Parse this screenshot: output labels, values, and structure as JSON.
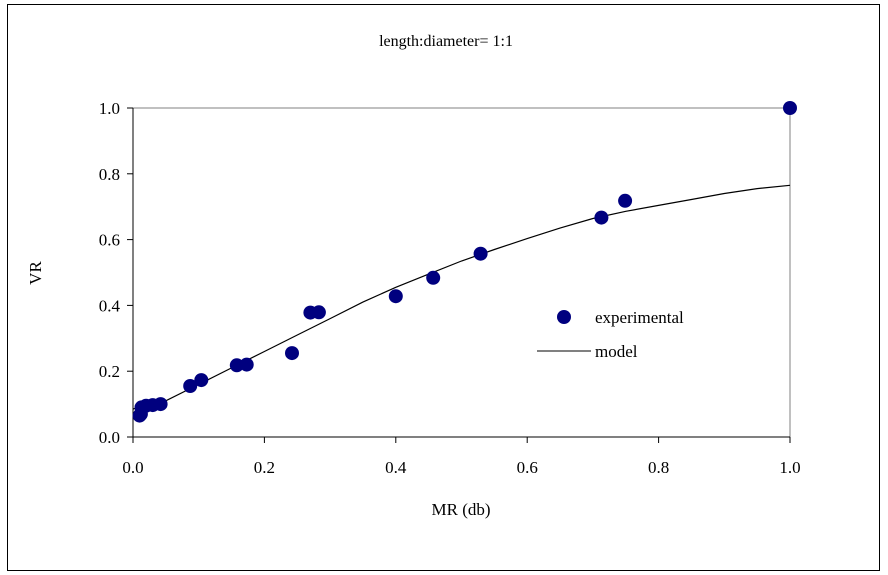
{
  "chart_data": {
    "type": "scatter",
    "title": "length:diameter= 1:1",
    "xlabel": "MR (db)",
    "ylabel": "VR",
    "xlim": [
      0.0,
      1.0
    ],
    "ylim": [
      0.0,
      1.0
    ],
    "x_ticks": [
      "0.0",
      "0.2",
      "0.4",
      "0.6",
      "0.8",
      "1.0"
    ],
    "y_ticks": [
      "0.0",
      "0.2",
      "0.4",
      "0.6",
      "0.8",
      "1.0"
    ],
    "grid": false,
    "legend_position": "right",
    "series": [
      {
        "name": "experimental",
        "kind": "scatter",
        "color": "#00007f",
        "x": [
          0.01,
          0.012,
          0.013,
          0.02,
          0.03,
          0.042,
          0.087,
          0.104,
          0.158,
          0.173,
          0.242,
          0.27,
          0.283,
          0.4,
          0.457,
          0.529,
          0.713,
          0.749,
          1.0
        ],
        "y": [
          0.065,
          0.07,
          0.09,
          0.095,
          0.097,
          0.1,
          0.155,
          0.173,
          0.218,
          0.22,
          0.255,
          0.378,
          0.379,
          0.428,
          0.484,
          0.557,
          0.667,
          0.718,
          1.0
        ]
      },
      {
        "name": "model",
        "kind": "line",
        "color": "#000000",
        "x": [
          0.0,
          0.05,
          0.1,
          0.15,
          0.2,
          0.25,
          0.3,
          0.35,
          0.4,
          0.45,
          0.5,
          0.55,
          0.6,
          0.65,
          0.7,
          0.75,
          0.8,
          0.85,
          0.9,
          0.95,
          1.0
        ],
        "y": [
          0.085,
          0.11,
          0.16,
          0.21,
          0.26,
          0.31,
          0.36,
          0.41,
          0.455,
          0.495,
          0.535,
          0.57,
          0.603,
          0.635,
          0.664,
          0.686,
          0.704,
          0.722,
          0.74,
          0.755,
          0.765
        ]
      }
    ]
  }
}
